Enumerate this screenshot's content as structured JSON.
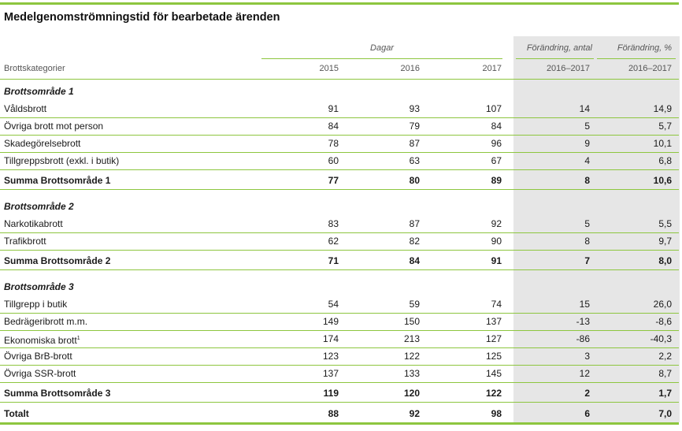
{
  "title": "Medelgenomströmningstid för bearbetade ärenden",
  "headers": {
    "group_days": "Dagar",
    "change_count": "Förändring, antal",
    "change_pct": "Förändring, %",
    "category": "Brottskategorier",
    "y2015": "2015",
    "y2016": "2016",
    "y2017": "2017",
    "range_count": "2016–2017",
    "range_pct": "2016–2017"
  },
  "rows": [
    {
      "label": "Brottsområde 1"
    },
    {
      "label": "Våldsbrott",
      "v2015": "91",
      "v2016": "93",
      "v2017": "107",
      "chg": "14",
      "pct": "14,9"
    },
    {
      "label": "Övriga brott mot person",
      "v2015": "84",
      "v2016": "79",
      "v2017": "84",
      "chg": "5",
      "pct": "5,7"
    },
    {
      "label": "Skadegörelsebrott",
      "v2015": "78",
      "v2016": "87",
      "v2017": "96",
      "chg": "9",
      "pct": "10,1"
    },
    {
      "label": "Tillgreppsbrott (exkl. i butik)",
      "v2015": "60",
      "v2016": "63",
      "v2017": "67",
      "chg": "4",
      "pct": "6,8"
    },
    {
      "label": "Summa Brottsområde 1",
      "v2015": "77",
      "v2016": "80",
      "v2017": "89",
      "chg": "8",
      "pct": "10,6"
    },
    {
      "label": "Brottsområde 2"
    },
    {
      "label": "Narkotikabrott",
      "v2015": "83",
      "v2016": "87",
      "v2017": "92",
      "chg": "5",
      "pct": "5,5"
    },
    {
      "label": "Trafikbrott",
      "v2015": "62",
      "v2016": "82",
      "v2017": "90",
      "chg": "8",
      "pct": "9,7"
    },
    {
      "label": "Summa Brottsområde 2",
      "v2015": "71",
      "v2016": "84",
      "v2017": "91",
      "chg": "7",
      "pct": "8,0"
    },
    {
      "label": "Brottsområde 3"
    },
    {
      "label": "Tillgrepp i butik",
      "v2015": "54",
      "v2016": "59",
      "v2017": "74",
      "chg": "15",
      "pct": "26,0"
    },
    {
      "label": "Bedrägeribrott m.m.",
      "v2015": "149",
      "v2016": "150",
      "v2017": "137",
      "chg": "-13",
      "pct": "-8,6"
    },
    {
      "label": "Ekonomiska brott",
      "sup": "1",
      "v2015": "174",
      "v2016": "213",
      "v2017": "127",
      "chg": "-86",
      "pct": "-40,3"
    },
    {
      "label": "Övriga BrB-brott",
      "v2015": "123",
      "v2016": "122",
      "v2017": "125",
      "chg": "3",
      "pct": "2,2"
    },
    {
      "label": "Övriga SSR-brott",
      "v2015": "137",
      "v2016": "133",
      "v2017": "145",
      "chg": "12",
      "pct": "8,7"
    },
    {
      "label": "Summa Brottsområde 3",
      "v2015": "119",
      "v2016": "120",
      "v2017": "122",
      "chg": "2",
      "pct": "1,7"
    },
    {
      "label": "Totalt",
      "v2015": "88",
      "v2016": "92",
      "v2017": "98",
      "chg": "6",
      "pct": "7,0"
    }
  ]
}
